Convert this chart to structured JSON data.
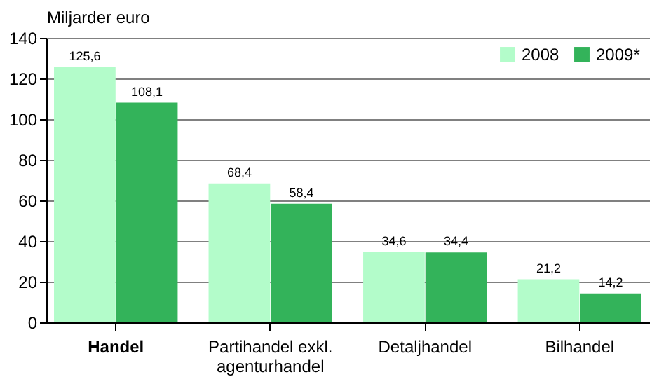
{
  "chart_data": {
    "type": "bar",
    "ylabel": "Miljarder euro",
    "categories": [
      "Handel",
      "Partihandel exkl. agenturhandel",
      "Detaljhandel",
      "Bilhandel"
    ],
    "series": [
      {
        "name": "2008",
        "color": "#b3fcca",
        "values": [
          125.6,
          68.4,
          34.6,
          21.2
        ],
        "value_labels": [
          "125,6",
          "68,4",
          "34,6",
          "21,2"
        ]
      },
      {
        "name": "2009*",
        "color": "#33b35a",
        "values": [
          108.1,
          58.4,
          34.4,
          14.2
        ],
        "value_labels": [
          "108,1",
          "58,4",
          "34,4",
          "14,2"
        ]
      }
    ],
    "ylim": [
      0,
      140
    ],
    "yticks": [
      0,
      20,
      40,
      60,
      80,
      100,
      120,
      140
    ],
    "grid": "y",
    "legend": "top right"
  }
}
